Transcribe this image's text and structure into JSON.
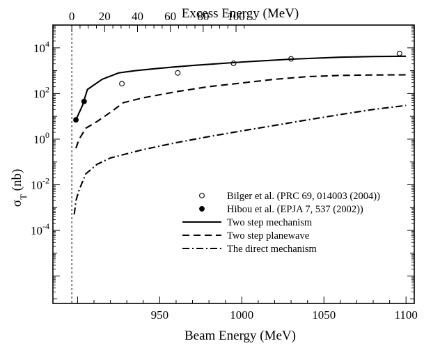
{
  "chart_data": {
    "type": "line",
    "title": "",
    "xlabel": "Beam Energy (MeV)",
    "x2label": "Excess Energy (MeV)",
    "ylabel": "σ",
    "ylabel_sub": "T",
    "ylabel_unit": " (nb)",
    "log_y": true,
    "grid": false,
    "legend_position": "lower-right",
    "xlim": [
      885,
      1105
    ],
    "ylim_exp": [
      -7.2,
      5
    ],
    "x2_offset": 896.5,
    "x2_ticks": [
      0,
      20,
      40,
      60,
      80,
      100
    ],
    "x_ticks": [
      950,
      1000,
      1050,
      1100
    ],
    "y_tick_exps": [
      4,
      2,
      0,
      -2,
      -4
    ],
    "threshold_x": 896.5,
    "series": [
      {
        "name": "Bilger et al. (PRC 69, 014003 (2004))",
        "style": "open-circle",
        "points": [
          [
            927,
            270
          ],
          [
            961,
            800
          ],
          [
            995,
            2100
          ],
          [
            1030,
            3300
          ],
          [
            1096,
            5700
          ]
        ]
      },
      {
        "name": "Hibou et al. (EPJA 7, 537 (2002))",
        "style": "filled-circle",
        "points": [
          [
            899,
            7
          ],
          [
            904,
            45
          ]
        ]
      },
      {
        "name": "Two step mechanism",
        "style": "solid",
        "points": [
          [
            899,
            7
          ],
          [
            903,
            30
          ],
          [
            906,
            150
          ],
          [
            915,
            420
          ],
          [
            925,
            800
          ],
          [
            935,
            1000
          ],
          [
            950,
            1280
          ],
          [
            970,
            1700
          ],
          [
            1000,
            2400
          ],
          [
            1030,
            3200
          ],
          [
            1060,
            3900
          ],
          [
            1080,
            4200
          ],
          [
            1100,
            4300
          ]
        ]
      },
      {
        "name": "Two step planewave",
        "style": "dashed",
        "points": [
          [
            899,
            0.4
          ],
          [
            901,
            1.0
          ],
          [
            905,
            3.0
          ],
          [
            912,
            6
          ],
          [
            920,
            15
          ],
          [
            928,
            40
          ],
          [
            940,
            65
          ],
          [
            960,
            120
          ],
          [
            980,
            200
          ],
          [
            1000,
            290
          ],
          [
            1020,
            420
          ],
          [
            1040,
            550
          ],
          [
            1060,
            620
          ],
          [
            1080,
            650
          ],
          [
            1100,
            660
          ]
        ]
      },
      {
        "name": "The direct mechanism",
        "style": "dashdot",
        "points": [
          [
            898,
            0.0005
          ],
          [
            899,
            0.002
          ],
          [
            901,
            0.006
          ],
          [
            905,
            0.03
          ],
          [
            912,
            0.08
          ],
          [
            920,
            0.15
          ],
          [
            940,
            0.35
          ],
          [
            960,
            0.7
          ],
          [
            980,
            1.3
          ],
          [
            1000,
            2.3
          ],
          [
            1020,
            4
          ],
          [
            1040,
            7
          ],
          [
            1060,
            12
          ],
          [
            1080,
            20
          ],
          [
            1100,
            30
          ]
        ]
      }
    ]
  }
}
